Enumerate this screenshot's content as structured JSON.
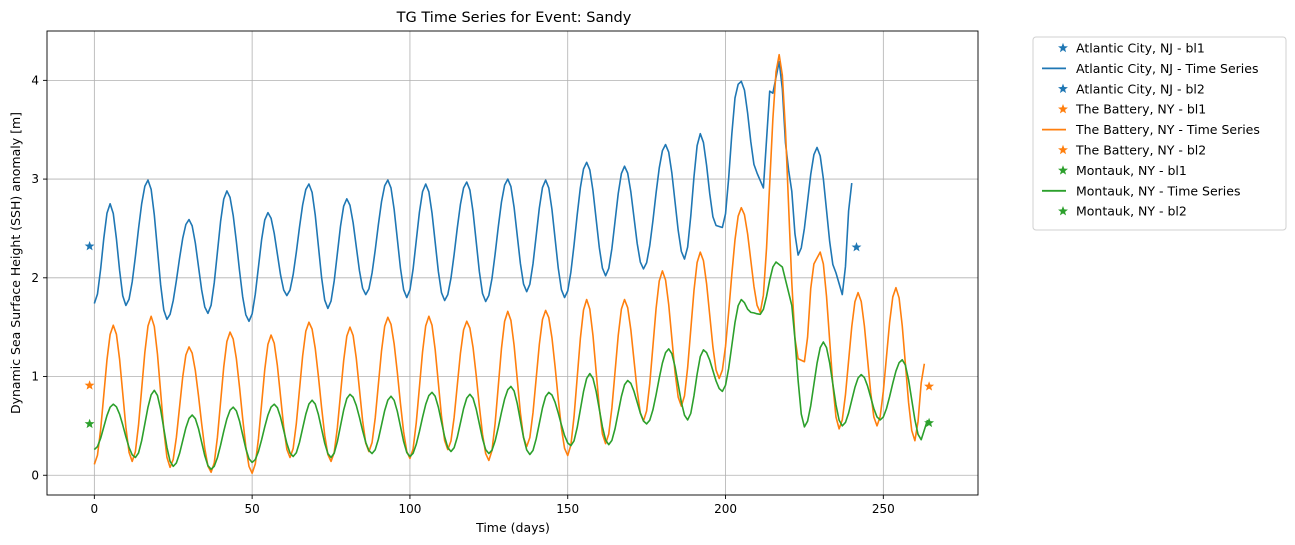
{
  "chart_data": {
    "type": "line",
    "title": "TG Time Series for Event: Sandy",
    "xlabel": "Time (days)",
    "ylabel": "Dynamic Sea Surface Height (SSH) anomaly [m]",
    "xlim": [
      -15,
      280
    ],
    "ylim": [
      -0.2,
      4.5
    ],
    "xticks": [
      0,
      50,
      100,
      150,
      200,
      250
    ],
    "yticks": [
      0,
      1,
      2,
      3,
      4
    ],
    "grid": true,
    "legend_position": "outside-right-top",
    "series": [
      {
        "name": "Atlantic City, NJ - Time Series",
        "color": "#1f77b4",
        "peaks": [
          [
            0,
            1.74
          ],
          [
            5,
            2.75
          ],
          [
            10,
            1.72
          ],
          [
            17,
            2.99
          ],
          [
            23,
            1.58
          ],
          [
            30,
            2.59
          ],
          [
            36,
            1.64
          ],
          [
            42,
            2.88
          ],
          [
            49,
            1.56
          ],
          [
            55,
            2.66
          ],
          [
            61,
            1.82
          ],
          [
            68,
            2.95
          ],
          [
            74,
            1.69
          ],
          [
            80,
            2.8
          ],
          [
            86,
            1.83
          ],
          [
            93,
            2.99
          ],
          [
            99,
            1.8
          ],
          [
            105,
            2.95
          ],
          [
            111,
            1.77
          ],
          [
            118,
            2.97
          ],
          [
            124,
            1.76
          ],
          [
            131,
            3.0
          ],
          [
            137,
            1.86
          ],
          [
            143,
            2.99
          ],
          [
            149,
            1.8
          ],
          [
            156,
            3.17
          ],
          [
            162,
            2.02
          ],
          [
            168,
            3.13
          ],
          [
            174,
            2.09
          ],
          [
            181,
            3.35
          ],
          [
            187,
            2.19
          ],
          [
            192,
            3.46
          ],
          [
            197,
            2.53
          ],
          [
            199,
            2.51
          ],
          [
            204,
            3.96
          ],
          [
            205,
            3.99
          ],
          [
            210,
            3.06
          ],
          [
            212,
            2.91
          ],
          [
            214,
            3.89
          ],
          [
            215,
            3.87
          ],
          [
            217,
            4.19
          ],
          [
            220,
            3.09
          ],
          [
            223,
            2.23
          ],
          [
            229,
            3.32
          ],
          [
            235,
            2.05
          ],
          [
            237,
            1.83
          ],
          [
            240,
            2.96
          ]
        ],
        "values_x": [],
        "values_y": []
      },
      {
        "name": "The Battery, NY - Time Series",
        "color": "#ff7f0e",
        "peaks": [
          [
            0,
            0.11
          ],
          [
            6,
            1.52
          ],
          [
            12,
            0.14
          ],
          [
            18,
            1.61
          ],
          [
            24,
            0.08
          ],
          [
            30,
            1.3
          ],
          [
            37,
            0.03
          ],
          [
            43,
            1.45
          ],
          [
            50,
            0.02
          ],
          [
            56,
            1.42
          ],
          [
            62,
            0.18
          ],
          [
            68,
            1.55
          ],
          [
            75,
            0.14
          ],
          [
            81,
            1.5
          ],
          [
            87,
            0.24
          ],
          [
            93,
            1.6
          ],
          [
            100,
            0.17
          ],
          [
            106,
            1.61
          ],
          [
            112,
            0.26
          ],
          [
            118,
            1.56
          ],
          [
            125,
            0.15
          ],
          [
            131,
            1.66
          ],
          [
            137,
            0.29
          ],
          [
            143,
            1.67
          ],
          [
            150,
            0.2
          ],
          [
            156,
            1.78
          ],
          [
            162,
            0.32
          ],
          [
            168,
            1.78
          ],
          [
            174,
            0.55
          ],
          [
            180,
            2.07
          ],
          [
            186,
            0.7
          ],
          [
            192,
            2.26
          ],
          [
            198,
            0.98
          ],
          [
            205,
            2.71
          ],
          [
            211,
            1.65
          ],
          [
            217,
            4.26
          ],
          [
            223,
            1.18
          ],
          [
            225,
            1.15
          ],
          [
            228,
            2.14
          ],
          [
            230,
            2.26
          ],
          [
            236,
            0.47
          ],
          [
            242,
            1.85
          ],
          [
            248,
            0.5
          ],
          [
            254,
            1.9
          ],
          [
            260,
            0.35
          ],
          [
            263,
            1.13
          ]
        ]
      },
      {
        "name": "Montauk, NY - Time Series",
        "color": "#2ca02c",
        "peaks": [
          [
            0,
            0.26
          ],
          [
            6,
            0.72
          ],
          [
            13,
            0.18
          ],
          [
            19,
            0.86
          ],
          [
            25,
            0.09
          ],
          [
            31,
            0.61
          ],
          [
            37,
            0.06
          ],
          [
            44,
            0.69
          ],
          [
            50,
            0.13
          ],
          [
            57,
            0.72
          ],
          [
            63,
            0.19
          ],
          [
            69,
            0.76
          ],
          [
            75,
            0.18
          ],
          [
            81,
            0.82
          ],
          [
            88,
            0.22
          ],
          [
            94,
            0.8
          ],
          [
            100,
            0.19
          ],
          [
            107,
            0.84
          ],
          [
            113,
            0.24
          ],
          [
            119,
            0.82
          ],
          [
            125,
            0.22
          ],
          [
            132,
            0.9
          ],
          [
            138,
            0.21
          ],
          [
            144,
            0.84
          ],
          [
            151,
            0.3
          ],
          [
            157,
            1.03
          ],
          [
            163,
            0.31
          ],
          [
            169,
            0.96
          ],
          [
            175,
            0.52
          ],
          [
            182,
            1.28
          ],
          [
            188,
            0.56
          ],
          [
            193,
            1.27
          ],
          [
            199,
            0.85
          ],
          [
            205,
            1.78
          ],
          [
            208,
            1.65
          ],
          [
            211,
            1.63
          ],
          [
            216,
            2.16
          ],
          [
            218,
            2.11
          ],
          [
            220,
            1.85
          ],
          [
            225,
            0.49
          ],
          [
            231,
            1.35
          ],
          [
            237,
            0.5
          ],
          [
            243,
            1.02
          ],
          [
            249,
            0.56
          ],
          [
            256,
            1.17
          ],
          [
            262,
            0.36
          ],
          [
            264,
            0.56
          ]
        ]
      }
    ],
    "markers": [
      {
        "name": "Atlantic City, NJ - bl1",
        "color": "#1f77b4",
        "x": -1.5,
        "y": 2.32
      },
      {
        "name": "Atlantic City, NJ - bl2",
        "color": "#1f77b4",
        "x": 241.5,
        "y": 2.31
      },
      {
        "name": "The Battery, NY - bl1",
        "color": "#ff7f0e",
        "x": -1.5,
        "y": 0.91
      },
      {
        "name": "The Battery, NY - bl2",
        "color": "#ff7f0e",
        "x": 264.5,
        "y": 0.9
      },
      {
        "name": "Montauk, NY - bl1",
        "color": "#2ca02c",
        "x": -1.5,
        "y": 0.52
      },
      {
        "name": "Montauk, NY - bl2",
        "color": "#2ca02c",
        "x": 264.5,
        "y": 0.53
      }
    ],
    "legend": [
      {
        "label": "Atlantic City, NJ - bl1",
        "kind": "star",
        "color": "#1f77b4"
      },
      {
        "label": "Atlantic City, NJ - Time Series",
        "kind": "line",
        "color": "#1f77b4"
      },
      {
        "label": "Atlantic City, NJ - bl2",
        "kind": "star",
        "color": "#1f77b4"
      },
      {
        "label": "The Battery, NY - bl1",
        "kind": "star",
        "color": "#ff7f0e"
      },
      {
        "label": "The Battery, NY - Time Series",
        "kind": "line",
        "color": "#ff7f0e"
      },
      {
        "label": "The Battery, NY - bl2",
        "kind": "star",
        "color": "#ff7f0e"
      },
      {
        "label": "Montauk, NY - bl1",
        "kind": "star",
        "color": "#2ca02c"
      },
      {
        "label": "Montauk, NY - Time Series",
        "kind": "line",
        "color": "#2ca02c"
      },
      {
        "label": "Montauk, NY - bl2",
        "kind": "star",
        "color": "#2ca02c"
      }
    ]
  }
}
